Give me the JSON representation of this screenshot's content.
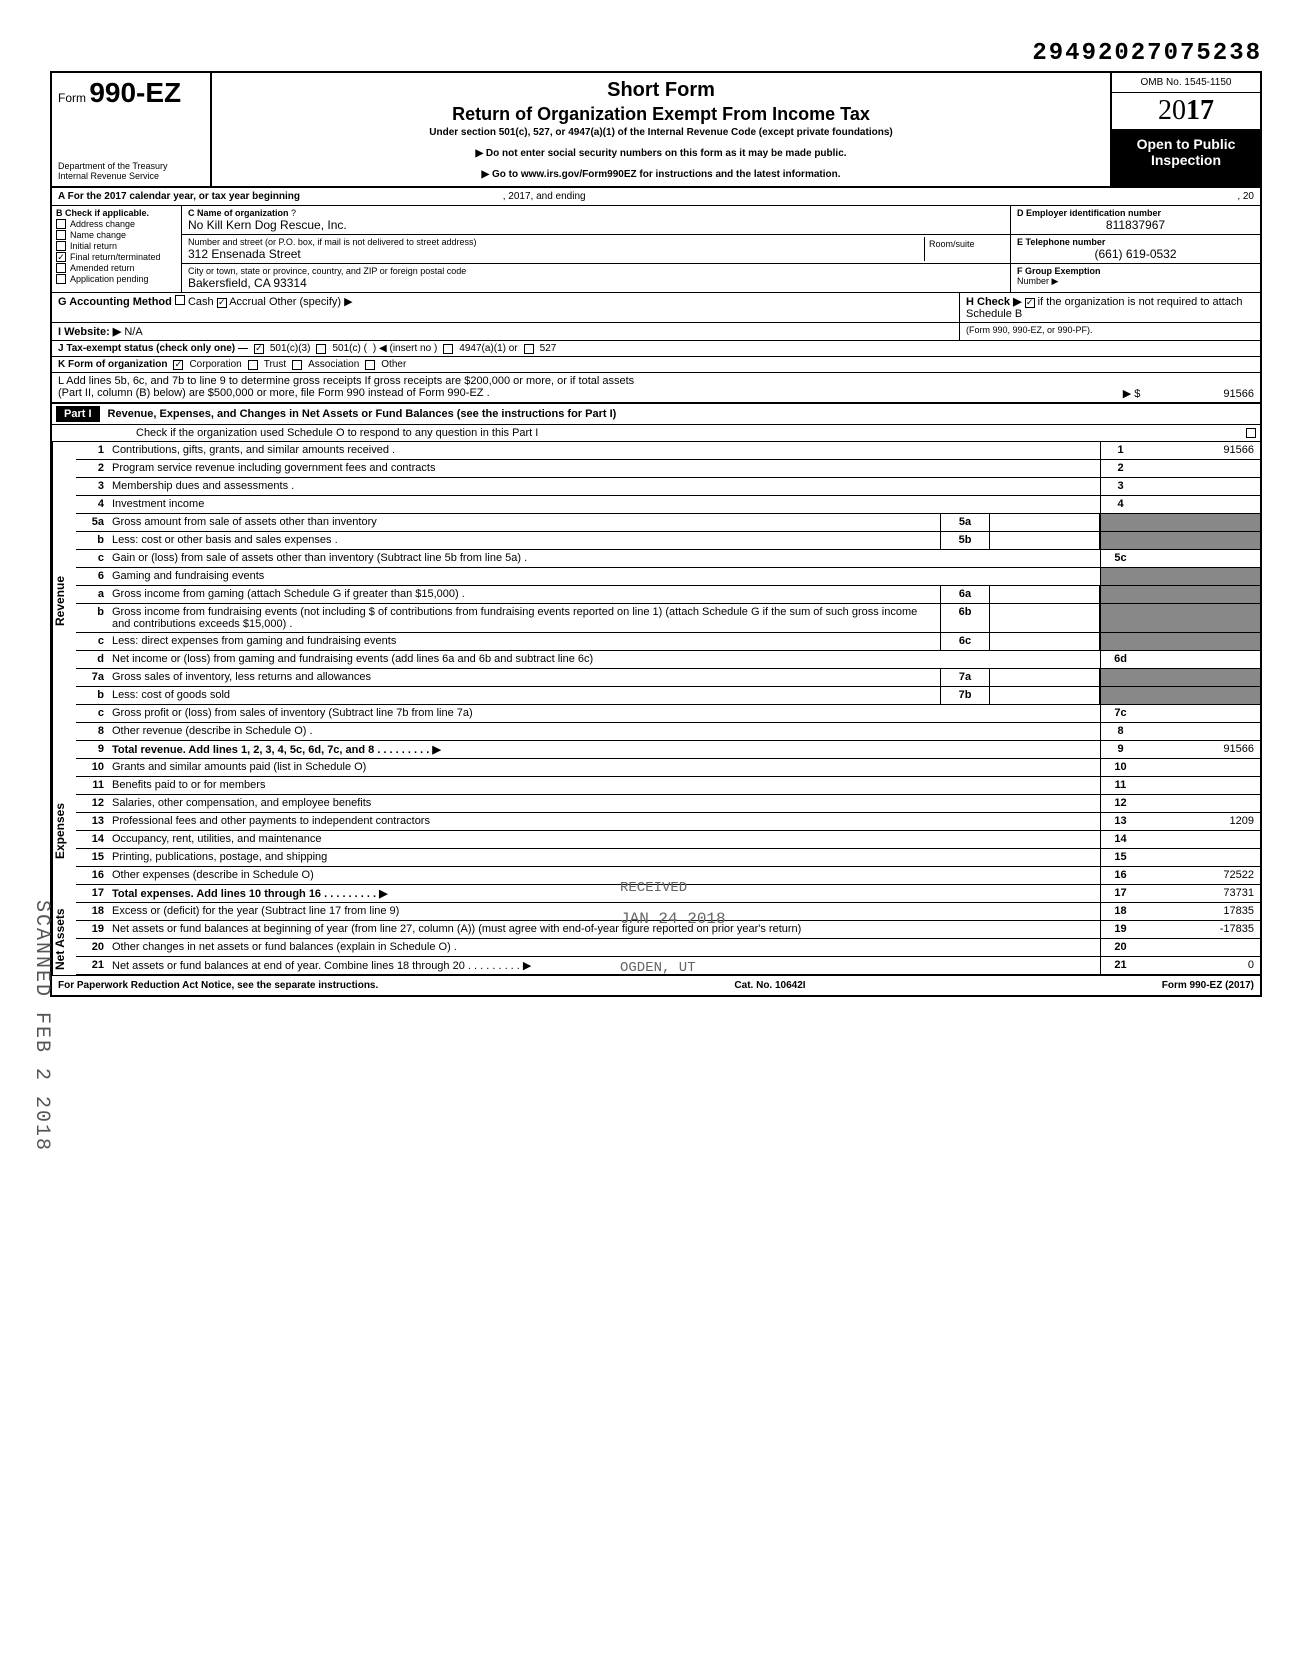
{
  "top_number": "29492027075238",
  "header": {
    "form_prefix": "Form",
    "form_num": "990-EZ",
    "title1": "Short Form",
    "title2": "Return of Organization Exempt From Income Tax",
    "subtitle": "Under section 501(c), 527, or 4947(a)(1) of the Internal Revenue Code (except private foundations)",
    "warn1": "Do not enter social security numbers on this form as it may be made public.",
    "warn2": "Go to www.irs.gov/Form990EZ for instructions and the latest information.",
    "dept1": "Department of the Treasury",
    "dept2": "Internal Revenue Service",
    "omb": "OMB No. 1545-1150",
    "year_prefix": "20",
    "year_bold": "17",
    "open": "Open to Public Inspection"
  },
  "row_a": {
    "label": "A For the 2017 calendar year, or tax year beginning",
    "mid": ", 2017, and ending",
    "end": ", 20"
  },
  "col_b": {
    "header": "B Check if applicable.",
    "items": [
      "Address change",
      "Name change",
      "Initial return",
      "Final return/terminated",
      "Amended return",
      "Application pending"
    ],
    "checked_idx": 3
  },
  "col_c": {
    "c_label": "C Name of organization",
    "c_value": "No Kill Kern Dog Rescue, Inc.",
    "addr_label": "Number and street (or P.O. box, if mail is not delivered to street address)",
    "room_label": "Room/suite",
    "addr_value": "312 Ensenada Street",
    "city_label": "City or town, state or province, country, and ZIP or foreign postal code",
    "city_value": "Bakersfield, CA 93314"
  },
  "col_d": {
    "d_label": "D Employer identification number",
    "d_value": "811837967",
    "e_label": "E Telephone number",
    "e_value": "(661) 619-0532",
    "f_label": "F Group Exemption",
    "f_label2": "Number ▶"
  },
  "row_g": {
    "label": "G Accounting Method",
    "cash": "Cash",
    "accrual": "Accrual",
    "other": "Other (specify) ▶"
  },
  "row_h": {
    "label": "H Check ▶",
    "txt": "if the organization is not required to attach Schedule B",
    "sub": "(Form 990, 990-EZ, or 990-PF)."
  },
  "row_i": {
    "label": "I  Website: ▶",
    "value": "N/A"
  },
  "row_j": {
    "label": "J Tax-exempt status (check only one) —",
    "o1": "501(c)(3)",
    "o2": "501(c) (",
    "o2b": ") ◀ (insert no )",
    "o3": "4947(a)(1) or",
    "o4": "527"
  },
  "row_k": {
    "label": "K Form of organization",
    "o1": "Corporation",
    "o2": "Trust",
    "o3": "Association",
    "o4": "Other"
  },
  "row_l": {
    "txt1": "L Add lines 5b, 6c, and 7b to line 9 to determine gross receipts  If gross receipts are $200,000 or more, or if total assets",
    "txt2": "(Part II, column (B) below) are $500,000 or more, file Form 990 instead of Form 990-EZ .",
    "arrow": "▶  $",
    "value": "91566"
  },
  "part1": {
    "hdr": "Part I",
    "title": "Revenue, Expenses, and Changes in Net Assets or Fund Balances (see the instructions for Part I)",
    "check": "Check if the organization used Schedule O to respond to any question in this Part I"
  },
  "sections": {
    "revenue": "Revenue",
    "expenses": "Expenses",
    "netassets": "Net Assets"
  },
  "lines": [
    {
      "n": "1",
      "txt": "Contributions, gifts, grants, and similar amounts received .",
      "rn": "1",
      "rv": "91566"
    },
    {
      "n": "2",
      "txt": "Program service revenue including government fees and contracts",
      "rn": "2",
      "rv": ""
    },
    {
      "n": "3",
      "txt": "Membership dues and assessments .",
      "rn": "3",
      "rv": ""
    },
    {
      "n": "4",
      "txt": "Investment income",
      "rn": "4",
      "rv": ""
    },
    {
      "n": "5a",
      "txt": "Gross amount from sale of assets other than inventory",
      "mc": "5a",
      "shaded": true
    },
    {
      "n": "b",
      "txt": "Less: cost or other basis and sales expenses .",
      "mc": "5b",
      "shaded": true
    },
    {
      "n": "c",
      "txt": "Gain or (loss) from sale of assets other than inventory (Subtract line 5b from line 5a) .",
      "rn": "5c",
      "rv": ""
    },
    {
      "n": "6",
      "txt": "Gaming and fundraising events",
      "shaded": true,
      "noborder": true
    },
    {
      "n": "a",
      "txt": "Gross income from gaming (attach Schedule G if greater than $15,000) .",
      "mc": "6a",
      "shaded": true
    },
    {
      "n": "b",
      "txt": "Gross income from fundraising events (not including  $                      of contributions from fundraising events reported on line 1) (attach Schedule G if the sum of such gross income and contributions exceeds $15,000) .",
      "mc": "6b",
      "shaded": true
    },
    {
      "n": "c",
      "txt": "Less: direct expenses from gaming and fundraising events",
      "mc": "6c",
      "shaded": true
    },
    {
      "n": "d",
      "txt": "Net income or (loss) from gaming and fundraising events (add lines 6a and 6b and subtract line 6c)",
      "rn": "6d",
      "rv": ""
    },
    {
      "n": "7a",
      "txt": "Gross sales of inventory, less returns and allowances",
      "mc": "7a",
      "shaded": true
    },
    {
      "n": "b",
      "txt": "Less: cost of goods sold",
      "mc": "7b",
      "shaded": true
    },
    {
      "n": "c",
      "txt": "Gross profit or (loss) from sales of inventory (Subtract line 7b from line 7a)",
      "rn": "7c",
      "rv": ""
    },
    {
      "n": "8",
      "txt": "Other revenue (describe in Schedule O) .",
      "rn": "8",
      "rv": ""
    },
    {
      "n": "9",
      "txt": "Total revenue. Add lines 1, 2, 3, 4, 5c, 6d, 7c, and 8",
      "rn": "9",
      "rv": "91566",
      "bold": true,
      "arrow": true
    }
  ],
  "exp_lines": [
    {
      "n": "10",
      "txt": "Grants and similar amounts paid (list in Schedule O)",
      "rn": "10",
      "rv": ""
    },
    {
      "n": "11",
      "txt": "Benefits paid to or for members",
      "rn": "11",
      "rv": ""
    },
    {
      "n": "12",
      "txt": "Salaries, other compensation, and employee benefits",
      "rn": "12",
      "rv": ""
    },
    {
      "n": "13",
      "txt": "Professional fees and other payments to independent contractors",
      "rn": "13",
      "rv": "1209"
    },
    {
      "n": "14",
      "txt": "Occupancy, rent, utilities, and maintenance",
      "rn": "14",
      "rv": ""
    },
    {
      "n": "15",
      "txt": "Printing, publications, postage, and shipping",
      "rn": "15",
      "rv": ""
    },
    {
      "n": "16",
      "txt": "Other expenses (describe in Schedule O)",
      "rn": "16",
      "rv": "72522"
    },
    {
      "n": "17",
      "txt": "Total expenses. Add lines 10 through 16",
      "rn": "17",
      "rv": "73731",
      "bold": true,
      "arrow": true
    }
  ],
  "net_lines": [
    {
      "n": "18",
      "txt": "Excess or (deficit) for the year (Subtract line 17 from line 9)",
      "rn": "18",
      "rv": "17835"
    },
    {
      "n": "19",
      "txt": "Net assets or fund balances at beginning of year (from line 27, column (A)) (must agree with end-of-year figure reported on prior year's return)",
      "rn": "19",
      "rv": "-17835"
    },
    {
      "n": "20",
      "txt": "Other changes in net assets or fund balances (explain in Schedule O) .",
      "rn": "20",
      "rv": ""
    },
    {
      "n": "21",
      "txt": "Net assets or fund balances at end of year. Combine lines 18 through 20",
      "rn": "21",
      "rv": "0",
      "arrow": true
    }
  ],
  "footer": {
    "left": "For Paperwork Reduction Act Notice, see the separate instructions.",
    "mid": "Cat. No. 10642I",
    "right": "Form 990-EZ (2017)"
  },
  "stamps": {
    "scanned": "SCANNED FEB 2 2018",
    "received": "RECEIVED",
    "date": "JAN 24 2018",
    "ogden": "OGDEN, UT"
  }
}
